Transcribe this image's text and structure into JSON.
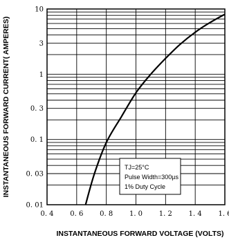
{
  "chart_data": {
    "type": "line",
    "title": "",
    "xlabel": "INSTANTANEOUS FORWARD VOLTAGE (VOLTS)",
    "ylabel": "INSTANTANEOUS FORWARD CURRENT( AMPERES)",
    "xlim": [
      0.4,
      1.6
    ],
    "ylim": [
      0.01,
      10
    ],
    "yscale": "log",
    "x_ticks": [
      0.4,
      0.6,
      0.8,
      1.0,
      1.2,
      1.4,
      1.6
    ],
    "x_tick_labels": [
      "0. 4",
      "0. 6",
      "0. 8",
      "1. 0",
      "1. 2",
      "1. 4",
      "1. 6"
    ],
    "y_ticks": [
      0.01,
      0.03,
      0.1,
      0.3,
      1,
      3,
      10
    ],
    "y_tick_labels": [
      "0. 01",
      "0. 03",
      "0. 1",
      "0. 3",
      "1",
      "3",
      "10"
    ],
    "grid": true,
    "annotations": {
      "tj": "TJ=25°C",
      "pulse": "Pulse Width=300µs",
      "duty": "1% Duty Cycle"
    },
    "series": [
      {
        "values": [
          {
            "x": 0.66,
            "y": 0.01
          },
          {
            "x": 0.72,
            "y": 0.03
          },
          {
            "x": 0.8,
            "y": 0.09
          },
          {
            "x": 0.9,
            "y": 0.22
          },
          {
            "x": 1.0,
            "y": 0.52
          },
          {
            "x": 1.1,
            "y": 1.0
          },
          {
            "x": 1.2,
            "y": 1.75
          },
          {
            "x": 1.3,
            "y": 2.9
          },
          {
            "x": 1.4,
            "y": 4.4
          },
          {
            "x": 1.5,
            "y": 6.2
          },
          {
            "x": 1.6,
            "y": 8.3
          }
        ]
      }
    ]
  }
}
